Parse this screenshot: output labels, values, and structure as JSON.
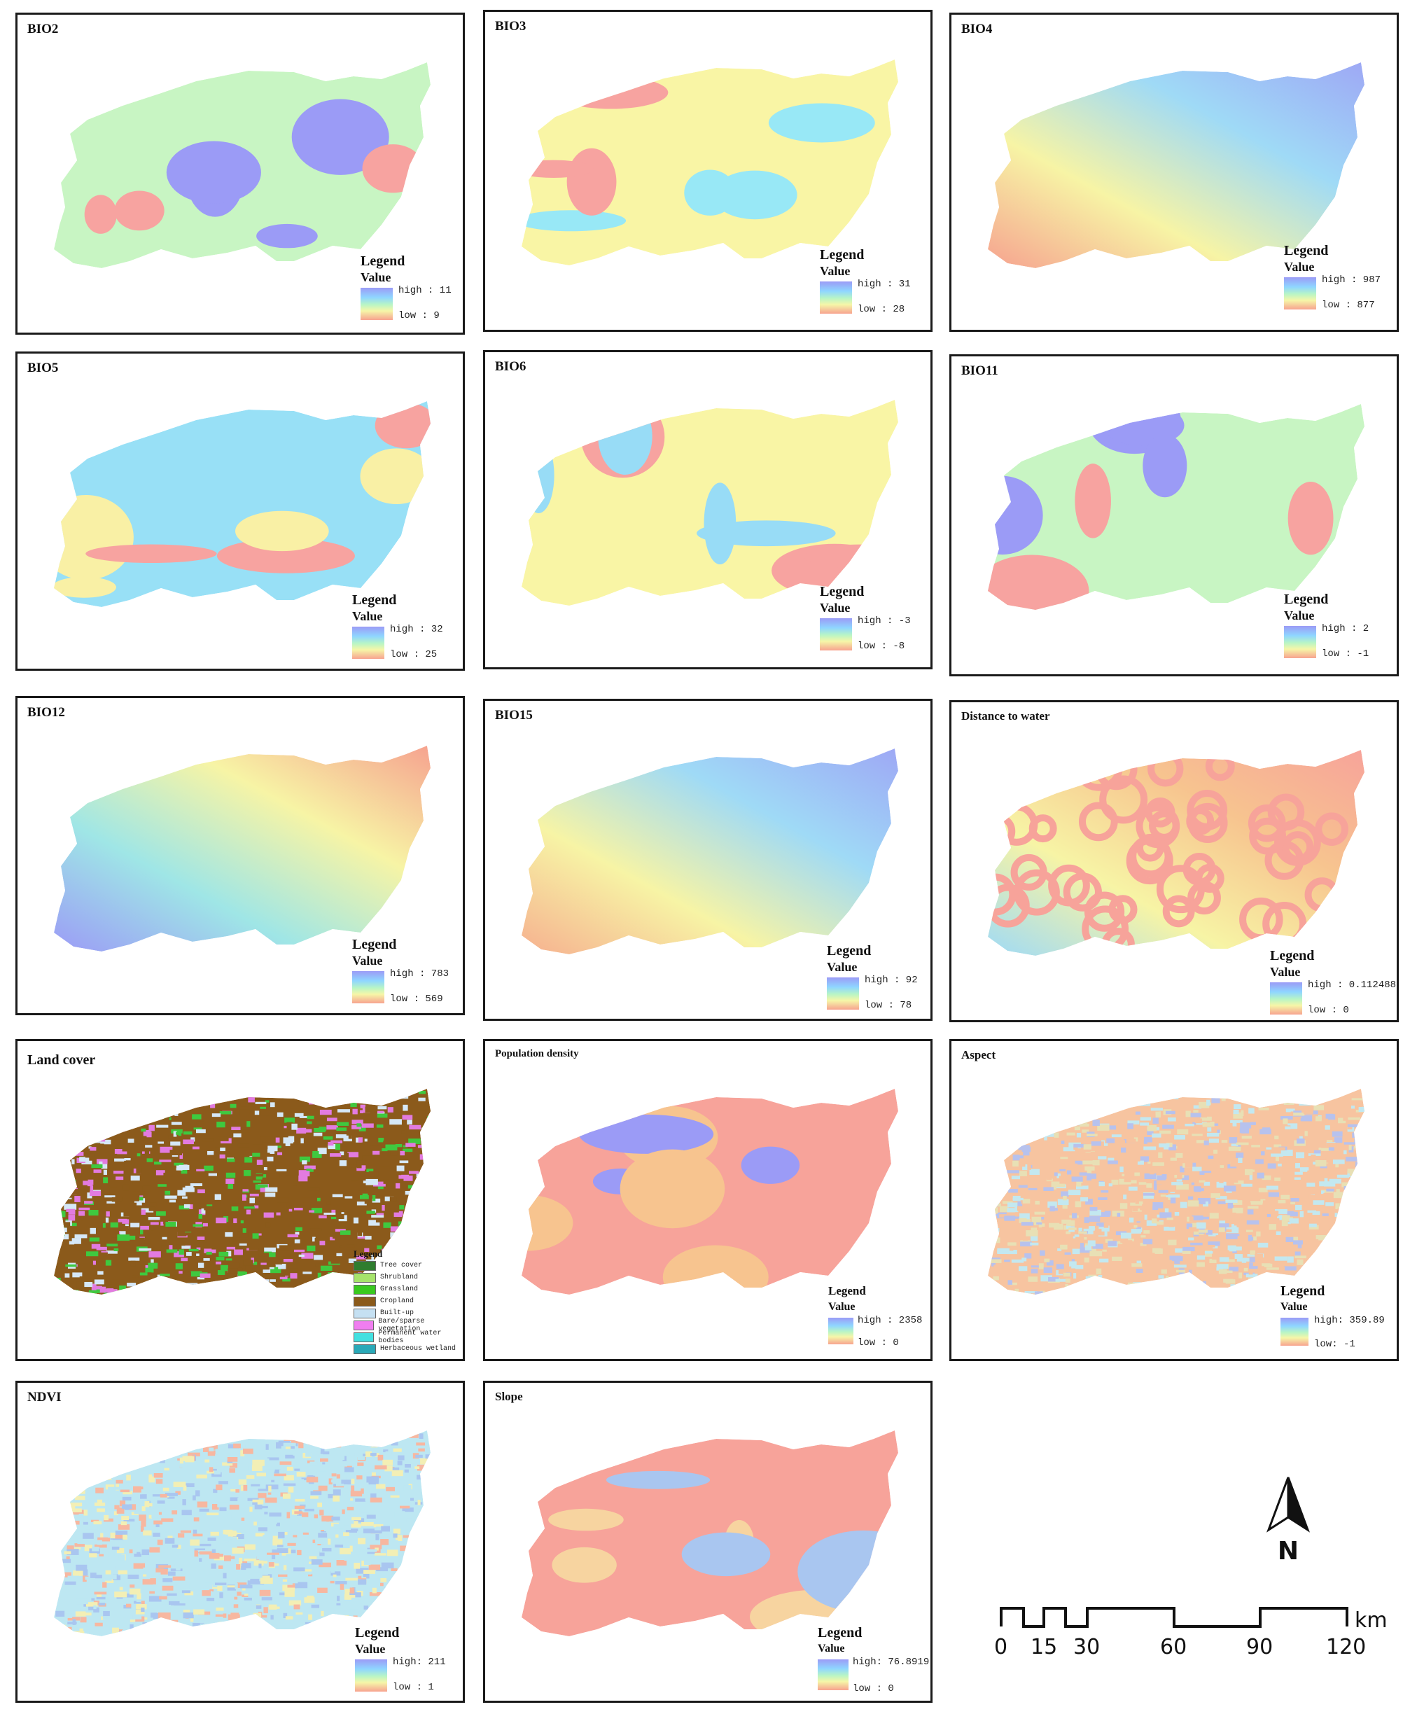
{
  "panels": [
    {
      "id": "bio02",
      "title": "BIO2",
      "type": "zones",
      "colors": [
        "#c8f5c3",
        "#9b9bf6",
        "#f7a3a0"
      ],
      "legend": {
        "title": "Legend",
        "sub": "Value",
        "high": "high : 11",
        "low": "low : 9"
      }
    },
    {
      "id": "bio03",
      "title": "BIO3",
      "type": "zones",
      "colors": [
        "#f9f5a5",
        "#98e8f6",
        "#f7a3a0"
      ],
      "legend": {
        "title": "Legend",
        "sub": "Value",
        "high": "high : 31",
        "low": "low : 28"
      }
    },
    {
      "id": "bio04",
      "title": "BIO4",
      "type": "gradient",
      "colors": [
        "#9ea8f5",
        "#9fdaf6",
        "#f7f4a5",
        "#f6a28f"
      ],
      "legend": {
        "title": "Legend",
        "sub": "Value",
        "high": "high : 987",
        "low": "low : 877"
      }
    },
    {
      "id": "bio05",
      "title": "BIO5",
      "type": "zones",
      "colors": [
        "#98e0f6",
        "#f9f0a5",
        "#f7a3a0"
      ],
      "legend": {
        "title": "Legend",
        "sub": "Value",
        "high": "high : 32",
        "low": "low : 25"
      }
    },
    {
      "id": "bio06",
      "title": "BIO6",
      "type": "zones",
      "colors": [
        "#f9f5a5",
        "#98dcf6",
        "#f7a3a0"
      ],
      "legend": {
        "title": "Legend",
        "sub": "Value",
        "high": "high : -3",
        "low": "low : -8"
      }
    },
    {
      "id": "bio11",
      "title": "BIO11",
      "type": "zones",
      "colors": [
        "#c8f5c3",
        "#9b9bf6",
        "#f7a3a0"
      ],
      "legend": {
        "title": "Legend",
        "sub": "Value",
        "high": "high : 2",
        "low": "low : -1"
      }
    },
    {
      "id": "bio12",
      "title": "BIO12",
      "type": "gradient",
      "colors": [
        "#f6a28f",
        "#f7f4a5",
        "#9fe6e6",
        "#9b9bf6"
      ],
      "legend": {
        "title": "Legend",
        "sub": "Value",
        "high": "high : 783",
        "low": "low : 569"
      }
    },
    {
      "id": "bio15",
      "title": "BIO15",
      "type": "gradient",
      "colors": [
        "#9ea8f5",
        "#9fdaf6",
        "#f7f4a5",
        "#f6b08f"
      ],
      "legend": {
        "title": "Legend",
        "sub": "Value",
        "high": "high : 92",
        "low": "low : 78"
      }
    },
    {
      "id": "water",
      "title": "Distance to water",
      "type": "gradient",
      "colors": [
        "#f7a39a",
        "#f7c48f",
        "#f7f4a5",
        "#9fdaf6"
      ],
      "legend": {
        "title": "Legend",
        "sub": "Value",
        "high": "high : 0.112488",
        "low": "low : 0"
      }
    },
    {
      "id": "landcover",
      "title": "Land cover",
      "type": "landcover",
      "colors": [
        "#8b5a1b",
        "#3fc93f",
        "#d6e8f7",
        "#e27be0"
      ],
      "legend": {
        "title": "Legend",
        "items": [
          {
            "label": "Tree cover",
            "color": "#2f7d2f"
          },
          {
            "label": "Shrubland",
            "color": "#a6e36b"
          },
          {
            "label": "Grassland",
            "color": "#39c91f"
          },
          {
            "label": "Cropland",
            "color": "#8b5a1b"
          },
          {
            "label": "Built-up",
            "color": "#c5e0f2"
          },
          {
            "label": "Bare/sparse vegetation",
            "color": "#f07ef0"
          },
          {
            "label": "Permanent water bodies",
            "color": "#43e0e0"
          },
          {
            "label": "Herbaceous wetland",
            "color": "#2aa9b8"
          }
        ]
      }
    },
    {
      "id": "popdens",
      "title": "Population density",
      "type": "zones",
      "colors": [
        "#f7a39a",
        "#f7c48f",
        "#9b9bf6"
      ],
      "legend": {
        "title": "Legend",
        "sub": "Value",
        "high": "high : 2358",
        "low": "low : 0"
      }
    },
    {
      "id": "aspect",
      "title": "Aspect",
      "type": "noise",
      "colors": [
        "#f7c4a0",
        "#c3e8f0",
        "#e8e0b5",
        "#b7c2ee"
      ],
      "legend": {
        "title": "Legend",
        "sub": "Value",
        "high": "high: 359.89",
        "low": "low: -1"
      }
    },
    {
      "id": "ndvi",
      "title": "NDVI",
      "type": "noise",
      "colors": [
        "#bde7f2",
        "#f3efb5",
        "#f7b7a0",
        "#a9c6f0"
      ],
      "legend": {
        "title": "Legend",
        "sub": "Value",
        "high": "high: 211",
        "low": "low : 1"
      }
    },
    {
      "id": "slope",
      "title": "Slope",
      "type": "zones",
      "colors": [
        "#f7a39a",
        "#f7d4a0",
        "#a9c6f0"
      ],
      "legend": {
        "title": "Legend",
        "sub": "Value",
        "high": "high: 76.8919",
        "low": "low : 0"
      }
    }
  ],
  "north": {
    "label": "N"
  },
  "scale": {
    "ticks": [
      "0",
      "15",
      "30",
      "60",
      "90",
      "120"
    ],
    "unit": "km"
  }
}
